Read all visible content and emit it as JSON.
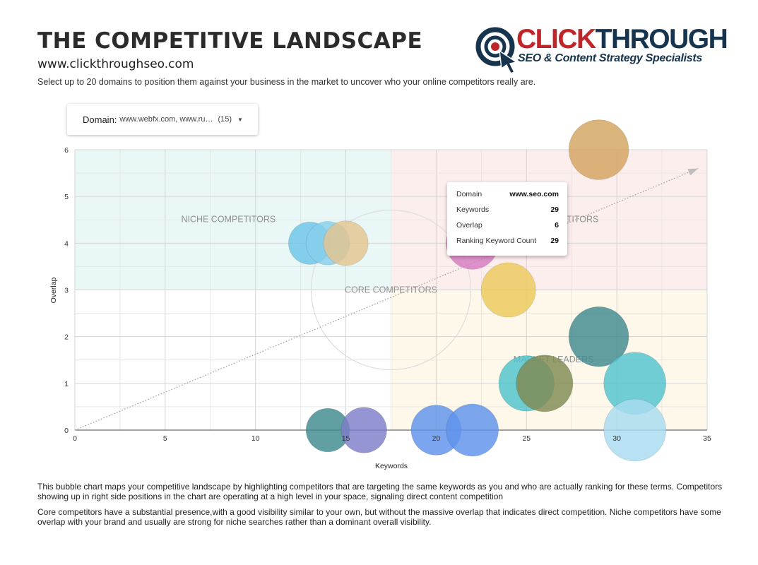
{
  "header": {
    "title": "THE COMPETITIVE LANDSCAPE",
    "site": "www.clickthroughseo.com",
    "intro": "Select up to 20 domains to position them against your business in the market to uncover who your online competitors really are."
  },
  "logo": {
    "word_part1": "CLICK",
    "word_part2": "THROUGH",
    "tagline": "SEO & Content Strategy Specialists"
  },
  "domain_filter": {
    "label": "Domain:",
    "value": "www.webfx.com, www.ru…",
    "count": "(15)"
  },
  "tooltip": {
    "rows": [
      {
        "label": "Domain",
        "value": "www.seo.com"
      },
      {
        "label": "Keywords",
        "value": "29"
      },
      {
        "label": "Overlap",
        "value": "6"
      },
      {
        "label": "Ranking Keyword Count",
        "value": "29"
      }
    ]
  },
  "chart_data": {
    "type": "scatter",
    "variant": "bubble",
    "xlabel": "Keywords",
    "ylabel": "Overlap",
    "xlim": [
      0,
      35
    ],
    "ylim": [
      0,
      6
    ],
    "x_ticks": [
      0,
      5,
      10,
      15,
      20,
      25,
      30,
      35
    ],
    "y_ticks": [
      0,
      1,
      2,
      3,
      4,
      5,
      6
    ],
    "grid": true,
    "quadrants": [
      {
        "label": "NICHE COMPETITORS",
        "x_range": [
          0,
          17.5
        ],
        "y_range": [
          3,
          6
        ],
        "color": "#e9f8f6"
      },
      {
        "label": "LEADERS / DIRECT COMPETITORS",
        "visible_label": "TITORS",
        "x_range": [
          17.5,
          35
        ],
        "y_range": [
          3,
          6
        ],
        "color": "#fdeeee"
      },
      {
        "label": "MARKET LEADERS",
        "x_range": [
          17.5,
          35
        ],
        "y_range": [
          0,
          3
        ],
        "color": "#fdf8ea"
      }
    ],
    "core_label": "CORE COMPETITORS",
    "core_center": [
      17.5,
      3
    ],
    "trend_line": {
      "from": [
        0,
        0
      ],
      "to": [
        34.5,
        5.6
      ]
    },
    "points": [
      {
        "x": 13,
        "y": 4,
        "size": 13,
        "color": "#6cc4e8"
      },
      {
        "x": 14,
        "y": 4,
        "size": 14,
        "color": "#86d0ec"
      },
      {
        "x": 15,
        "y": 4,
        "size": 15,
        "color": "#e3c48f"
      },
      {
        "x": 22,
        "y": 4,
        "size": 22,
        "color": "#d77bbf"
      },
      {
        "x": 24,
        "y": 3,
        "size": 24,
        "color": "#edc95c"
      },
      {
        "x": 29,
        "y": 6,
        "size": 29,
        "color": "#d3a35f"
      },
      {
        "x": 29,
        "y": 2,
        "size": 29,
        "color": "#3f8a8f"
      },
      {
        "x": 25,
        "y": 1,
        "size": 25,
        "color": "#4ec3cc"
      },
      {
        "x": 26,
        "y": 1,
        "size": 26,
        "color": "#7f8a52"
      },
      {
        "x": 31,
        "y": 1,
        "size": 31,
        "color": "#52c3cf"
      },
      {
        "x": 31,
        "y": 0,
        "size": 31,
        "color": "#a8dcf2"
      },
      {
        "x": 14,
        "y": 0,
        "size": 14,
        "color": "#3f8a8f"
      },
      {
        "x": 16,
        "y": 0,
        "size": 16,
        "color": "#7e7ec9"
      },
      {
        "x": 20,
        "y": 0,
        "size": 20,
        "color": "#5e92ec"
      },
      {
        "x": 22,
        "y": 0,
        "size": 22,
        "color": "#5e92ec"
      }
    ]
  },
  "footer": {
    "p1": "This bubble chart maps your competitive landscape by highlighting competitors that are targeting the same keywords as you and who are actually ranking for these terms. Competitors showing up in right side positions in the chart are operating at a high level in your space, signaling direct content competition",
    "p2": "Core competitors have a substantial presence,with a good visibility similar to your own, but without the massive overlap that indicates direct competition. Niche competitors have some overlap with your brand and usually are strong for niche searches rather than a dominant overall visibility."
  }
}
